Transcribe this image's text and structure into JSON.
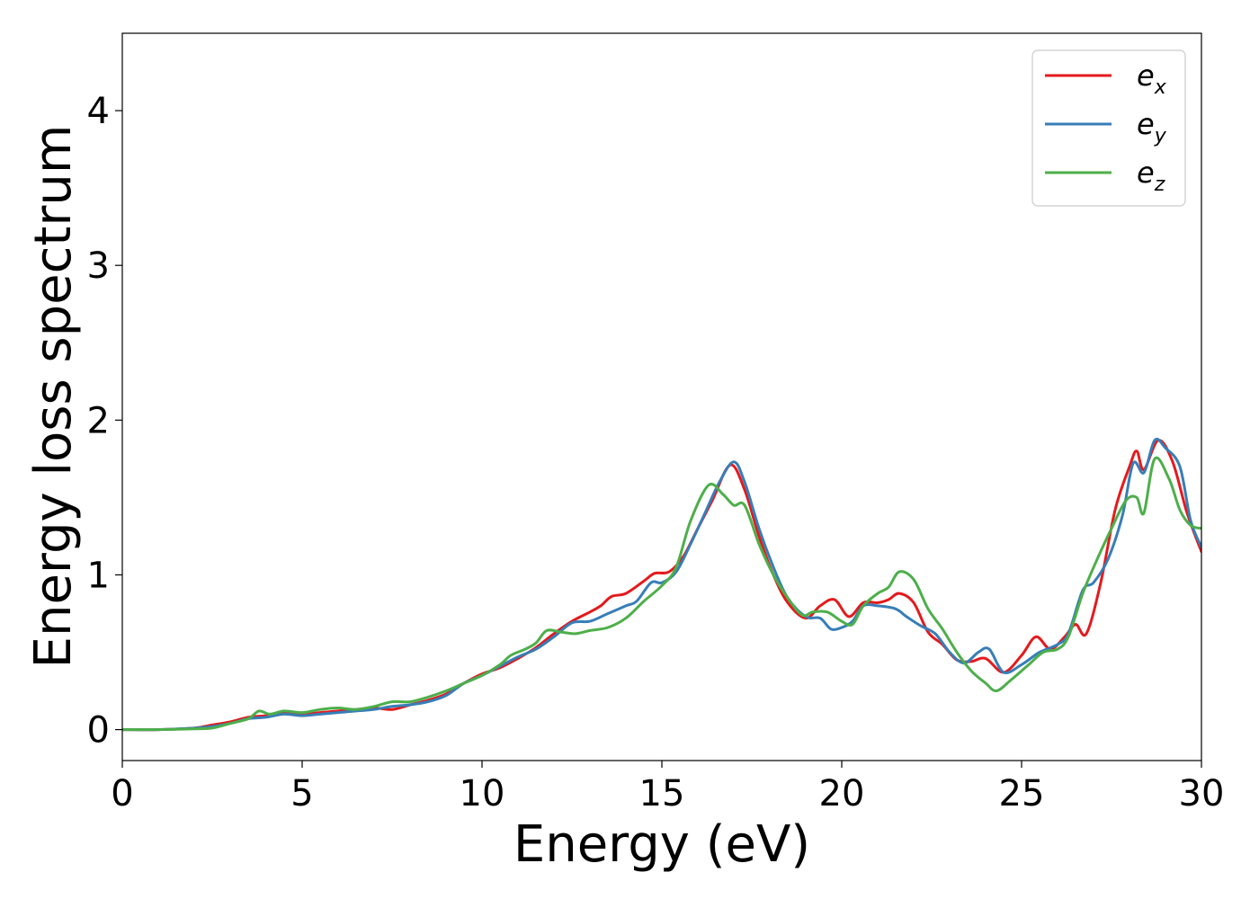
{
  "chart_data": {
    "type": "line",
    "title": "",
    "xlabel": "Energy (eV)",
    "ylabel": "Energy loss spectrum",
    "xlim": [
      0,
      30
    ],
    "ylim": [
      -0.2,
      4.5
    ],
    "xticks": [
      0,
      5,
      10,
      15,
      20,
      25,
      30
    ],
    "yticks": [
      0,
      1,
      2,
      3,
      4
    ],
    "grid": false,
    "legend_position": "top-right",
    "series": [
      {
        "name": "e",
        "subscript": "x",
        "color": "#e41a1c",
        "x": [
          0,
          1,
          2,
          2.5,
          3,
          3.5,
          4,
          4.5,
          5,
          5.5,
          6,
          6.5,
          7,
          7.5,
          8,
          8.5,
          9,
          9.5,
          10,
          10.5,
          11,
          11.5,
          12,
          12.5,
          13,
          13.3,
          13.6,
          14,
          14.5,
          14.8,
          15.2,
          15.6,
          16,
          16.4,
          16.9,
          17.3,
          17.7,
          18.1,
          18.5,
          19,
          19.4,
          19.8,
          20.2,
          20.6,
          21,
          21.3,
          21.6,
          22,
          22.4,
          22.8,
          23.2,
          23.6,
          24,
          24.5,
          25,
          25.4,
          25.8,
          26.2,
          26.5,
          26.8,
          27.2,
          27.6,
          28,
          28.2,
          28.4,
          28.8,
          29.2,
          29.6,
          30
        ],
        "y": [
          0,
          0,
          0.01,
          0.03,
          0.05,
          0.08,
          0.09,
          0.11,
          0.1,
          0.11,
          0.12,
          0.13,
          0.14,
          0.13,
          0.16,
          0.19,
          0.23,
          0.3,
          0.36,
          0.4,
          0.46,
          0.53,
          0.62,
          0.7,
          0.76,
          0.8,
          0.86,
          0.88,
          0.96,
          1.01,
          1.02,
          1.12,
          1.3,
          1.48,
          1.71,
          1.55,
          1.25,
          1.0,
          0.82,
          0.72,
          0.8,
          0.84,
          0.73,
          0.82,
          0.82,
          0.84,
          0.88,
          0.82,
          0.63,
          0.55,
          0.45,
          0.44,
          0.46,
          0.37,
          0.48,
          0.6,
          0.52,
          0.6,
          0.68,
          0.62,
          0.95,
          1.42,
          1.7,
          1.8,
          1.68,
          1.87,
          1.73,
          1.4,
          1.15
        ]
      },
      {
        "name": "e",
        "subscript": "y",
        "color": "#377eb8",
        "x": [
          0,
          1,
          2,
          2.5,
          3,
          3.5,
          4,
          4.5,
          5,
          5.5,
          6,
          6.5,
          7,
          7.5,
          8,
          8.5,
          9,
          9.5,
          10,
          10.5,
          11,
          11.5,
          12,
          12.5,
          13,
          13.5,
          14,
          14.3,
          14.7,
          15,
          15.4,
          15.8,
          16.2,
          16.6,
          17,
          17.3,
          17.7,
          18.1,
          18.5,
          19,
          19.4,
          19.7,
          20,
          20.3,
          20.6,
          21,
          21.5,
          21.8,
          22.2,
          22.6,
          23,
          23.4,
          23.8,
          24.1,
          24.5,
          25,
          25.5,
          26,
          26.3,
          26.7,
          27,
          27.4,
          27.8,
          28.1,
          28.4,
          28.7,
          29,
          29.4,
          29.7,
          30
        ],
        "y": [
          0,
          0,
          0.01,
          0.02,
          0.04,
          0.07,
          0.08,
          0.1,
          0.09,
          0.1,
          0.11,
          0.12,
          0.13,
          0.15,
          0.16,
          0.18,
          0.22,
          0.3,
          0.35,
          0.41,
          0.47,
          0.52,
          0.6,
          0.69,
          0.7,
          0.75,
          0.8,
          0.83,
          0.95,
          0.95,
          1.02,
          1.2,
          1.4,
          1.6,
          1.73,
          1.6,
          1.3,
          1.05,
          0.85,
          0.73,
          0.72,
          0.65,
          0.66,
          0.7,
          0.8,
          0.8,
          0.78,
          0.73,
          0.67,
          0.62,
          0.5,
          0.43,
          0.5,
          0.52,
          0.37,
          0.42,
          0.5,
          0.55,
          0.62,
          0.9,
          0.95,
          1.1,
          1.38,
          1.72,
          1.66,
          1.87,
          1.82,
          1.7,
          1.35,
          1.18
        ]
      },
      {
        "name": "e",
        "subscript": "z",
        "color": "#4daf4a",
        "x": [
          0,
          1,
          2,
          2.5,
          3,
          3.5,
          3.8,
          4.1,
          4.5,
          5,
          5.5,
          6,
          6.5,
          7,
          7.5,
          8,
          8.5,
          9,
          9.5,
          10,
          10.5,
          10.8,
          11.2,
          11.5,
          11.8,
          12.2,
          12.6,
          13,
          13.5,
          14,
          14.5,
          15,
          15.4,
          15.8,
          16.3,
          16.7,
          17,
          17.3,
          17.7,
          18.1,
          18.5,
          18.9,
          19.2,
          19.6,
          20,
          20.3,
          20.6,
          21,
          21.3,
          21.6,
          22,
          22.4,
          22.8,
          23.2,
          23.6,
          24,
          24.3,
          24.7,
          25.2,
          25.6,
          26,
          26.3,
          26.7,
          27.1,
          27.5,
          27.9,
          28.2,
          28.4,
          28.7,
          29.1,
          29.4,
          29.7,
          30
        ],
        "y": [
          0,
          0,
          0.005,
          0.01,
          0.04,
          0.07,
          0.12,
          0.1,
          0.12,
          0.11,
          0.13,
          0.14,
          0.13,
          0.15,
          0.18,
          0.18,
          0.21,
          0.25,
          0.3,
          0.35,
          0.42,
          0.48,
          0.52,
          0.56,
          0.64,
          0.63,
          0.62,
          0.64,
          0.66,
          0.72,
          0.83,
          0.93,
          1.05,
          1.35,
          1.58,
          1.52,
          1.45,
          1.45,
          1.2,
          1.0,
          0.85,
          0.74,
          0.76,
          0.76,
          0.7,
          0.68,
          0.8,
          0.88,
          0.92,
          1.02,
          0.97,
          0.78,
          0.65,
          0.5,
          0.38,
          0.3,
          0.25,
          0.32,
          0.42,
          0.5,
          0.52,
          0.6,
          0.88,
          1.1,
          1.3,
          1.48,
          1.5,
          1.4,
          1.75,
          1.62,
          1.42,
          1.32,
          1.3
        ]
      }
    ]
  }
}
